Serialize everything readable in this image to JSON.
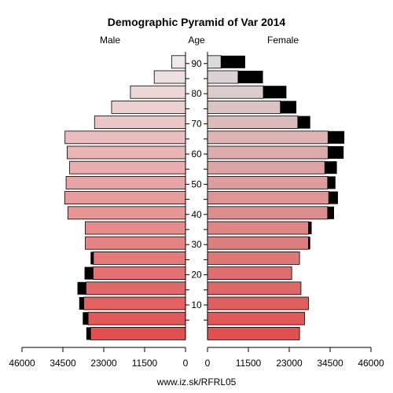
{
  "chart_data": {
    "type": "bar",
    "title": "Demographic Pyramid of Var 2014",
    "left_label": "Male",
    "middle_label": "Age",
    "right_label": "Female",
    "source": "www.iz.sk/RFRL05",
    "x_ticks_left": [
      "46000",
      "34500",
      "23000",
      "11500",
      "0"
    ],
    "x_ticks_right": [
      "0",
      "11500",
      "23000",
      "34500",
      "46000"
    ],
    "age_ticks": [
      "10",
      "20",
      "30",
      "40",
      "50",
      "60",
      "70",
      "80",
      "90"
    ],
    "xlim": [
      0,
      46000
    ],
    "age_groups": [
      "0-4",
      "5-9",
      "10-14",
      "15-19",
      "20-24",
      "25-29",
      "30-34",
      "35-39",
      "40-44",
      "45-49",
      "50-54",
      "55-59",
      "60-64",
      "65-69",
      "70-74",
      "75-79",
      "80-84",
      "85-89",
      "90-94"
    ],
    "series": [
      {
        "name": "Male",
        "values": [
          26700,
          27400,
          28600,
          28000,
          26000,
          25900,
          28200,
          28200,
          33100,
          34000,
          33600,
          32600,
          33300,
          33900,
          25600,
          20800,
          15500,
          8800,
          3900
        ]
      },
      {
        "name": "Male excess",
        "values": [
          1200,
          1500,
          1300,
          2400,
          2400,
          800,
          0,
          0,
          0,
          0,
          0,
          0,
          0,
          0,
          0,
          0,
          0,
          0,
          0
        ]
      },
      {
        "name": "Female",
        "values": [
          25900,
          27300,
          28400,
          26300,
          23700,
          25900,
          28400,
          28400,
          33800,
          34100,
          33800,
          33000,
          33900,
          33900,
          25400,
          20500,
          15700,
          8600,
          3800
        ]
      },
      {
        "name": "Female excess",
        "values": [
          0,
          0,
          0,
          0,
          0,
          0,
          500,
          900,
          1800,
          2600,
          2200,
          3400,
          4400,
          4600,
          3500,
          4500,
          6500,
          7000,
          6800
        ]
      }
    ]
  }
}
